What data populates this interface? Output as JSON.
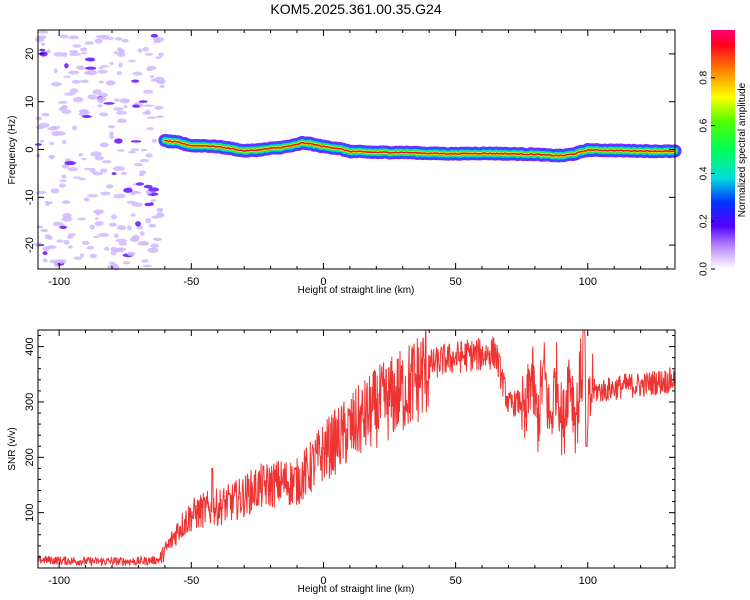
{
  "title": "KOM5.2025.361.00.35.G24",
  "chart_data": [
    {
      "type": "heatmap",
      "xlabel": "Height of straight line (km)",
      "ylabel": "Frequency (Hz)",
      "xlim": [
        -108,
        133
      ],
      "ylim": [
        -25,
        25
      ],
      "xticks": [
        -100,
        -50,
        0,
        50,
        100
      ],
      "yticks": [
        -20,
        -10,
        0,
        10,
        20
      ],
      "grid": false,
      "ridge": {
        "x": [
          -60,
          -55,
          -50,
          -45,
          -40,
          -35,
          -30,
          -25,
          -20,
          -15,
          -10,
          -8,
          -5,
          0,
          5,
          10,
          20,
          30,
          40,
          50,
          60,
          70,
          80,
          85,
          90,
          95,
          100,
          110,
          120,
          133
        ],
        "y": [
          1.8,
          1.5,
          0.8,
          0.8,
          0.6,
          0.2,
          -0.3,
          -0.1,
          0.2,
          0.5,
          1.0,
          1.4,
          1.2,
          0.6,
          0.3,
          -0.4,
          -0.6,
          -0.6,
          -0.8,
          -0.9,
          -0.8,
          -0.9,
          -1.0,
          -1.2,
          -1.3,
          -0.9,
          -0.1,
          -0.2,
          -0.3,
          -0.4
        ],
        "peak_amplitude": 1.0
      },
      "noise_region": {
        "x_range": [
          -108,
          -61
        ],
        "amplitude": 0.12
      },
      "colorbar": {
        "label": "Normalized spectral amplitude",
        "range": [
          0,
          1
        ],
        "ticks": [
          "0.0",
          "0.2",
          "0.4",
          "0.6",
          "0.8"
        ]
      }
    },
    {
      "type": "line",
      "xlabel": "Height of straight line (km)",
      "ylabel": "SNR (v/v)",
      "xlim": [
        -108,
        133
      ],
      "ylim": [
        0,
        430
      ],
      "xticks": [
        -100,
        -50,
        0,
        50,
        100
      ],
      "yticks": [
        100,
        200,
        300,
        400
      ],
      "grid": false,
      "series": [
        {
          "name": "SNR",
          "color": "#ee3333",
          "trend_x": [
            -108,
            -90,
            -70,
            -62,
            -58,
            -55,
            -50,
            -45,
            -40,
            -35,
            -30,
            -25,
            -20,
            -15,
            -10,
            -5,
            0,
            5,
            10,
            15,
            20,
            25,
            30,
            35,
            40,
            45,
            50,
            55,
            60,
            65,
            70,
            75,
            80,
            85,
            90,
            95,
            100,
            105,
            110,
            115,
            120,
            125,
            133
          ],
          "trend_y": [
            15,
            12,
            12,
            15,
            45,
            70,
            95,
            105,
            110,
            118,
            130,
            145,
            150,
            155,
            155,
            180,
            210,
            230,
            250,
            270,
            290,
            305,
            320,
            340,
            365,
            375,
            380,
            385,
            385,
            390,
            295,
            300,
            310,
            310,
            300,
            315,
            320,
            320,
            325,
            330,
            330,
            335,
            340
          ],
          "trend_shape": "rising SNR: low noise floor near 15 for heights below -60 km, rising to about 380 at 60 km, with strong oscillation between 75 and 100 km (spike to 430 near 98 km, dips to about 220), then about 330 to 340 up to 133 km",
          "point_count": 1400
        }
      ]
    }
  ]
}
